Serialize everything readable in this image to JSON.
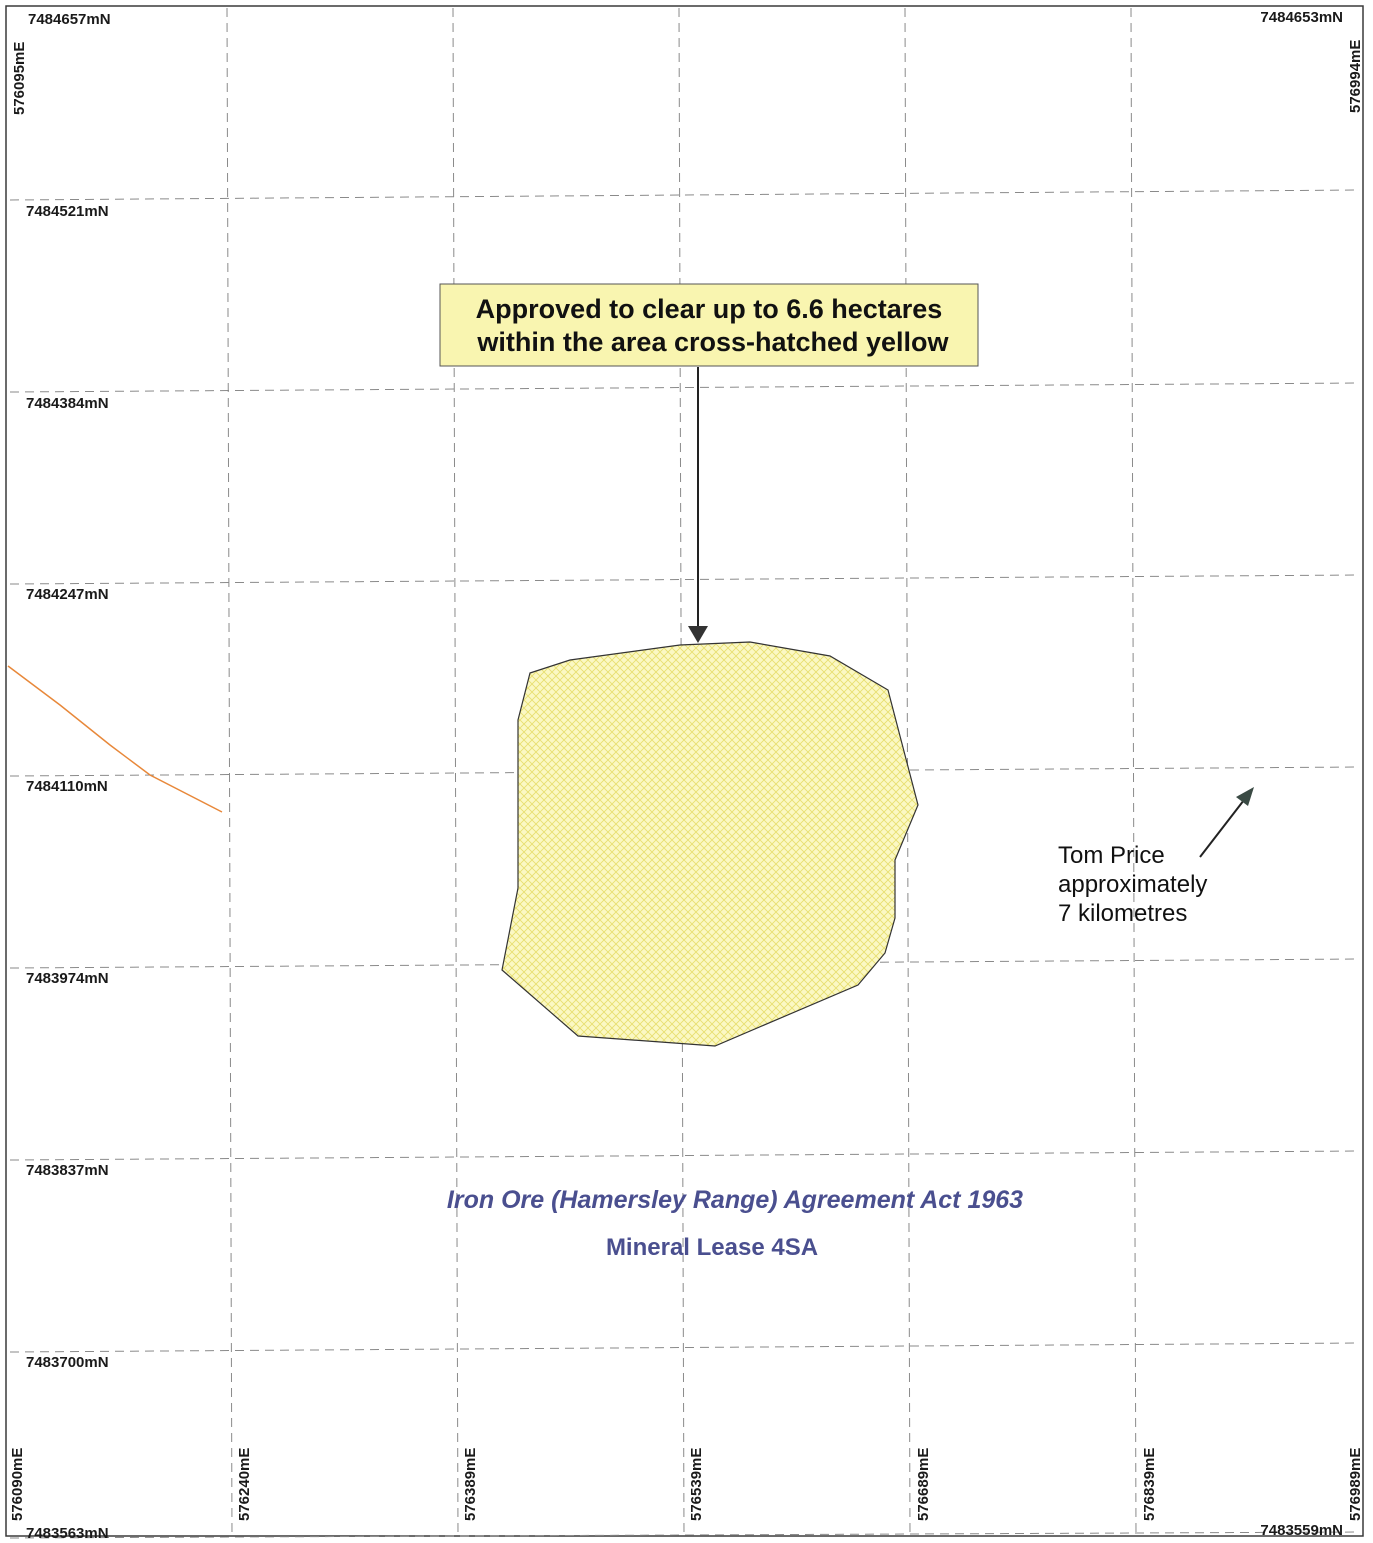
{
  "map": {
    "northings_left": [
      "7484657mN",
      "7484521mN",
      "7484384mN",
      "7484247mN",
      "7484110mN",
      "7483974mN",
      "7483837mN",
      "7483700mN",
      "7483563mN"
    ],
    "northing_top_right": "7484653mN",
    "northing_bottom_right": "7483559mN",
    "eastings_bottom": [
      "576090mE",
      "576240mE",
      "576389mE",
      "576539mE",
      "576689mE",
      "576839mE",
      "576989mE"
    ],
    "easting_top_left": "576095mE",
    "easting_top_right": "576994mE",
    "callout": {
      "line1": "Approved to clear up to 6.6 hectares",
      "line2": "within the area cross-hatched yellow"
    },
    "tom_price_note": {
      "line1": "Tom Price",
      "line2": "approximately",
      "line3": "7 kilometres"
    },
    "act_title": "Iron Ore (Hamersley Range) Agreement Act 1963",
    "lease_title": "Mineral Lease 4SA",
    "colors": {
      "clearing_area_fill": "#fbf8c4",
      "clearing_area_hatch": "#e8df70",
      "callout_background": "#f9f5b0",
      "text_blue": "#4a4f8f",
      "road_orange": "#e8883a"
    }
  }
}
